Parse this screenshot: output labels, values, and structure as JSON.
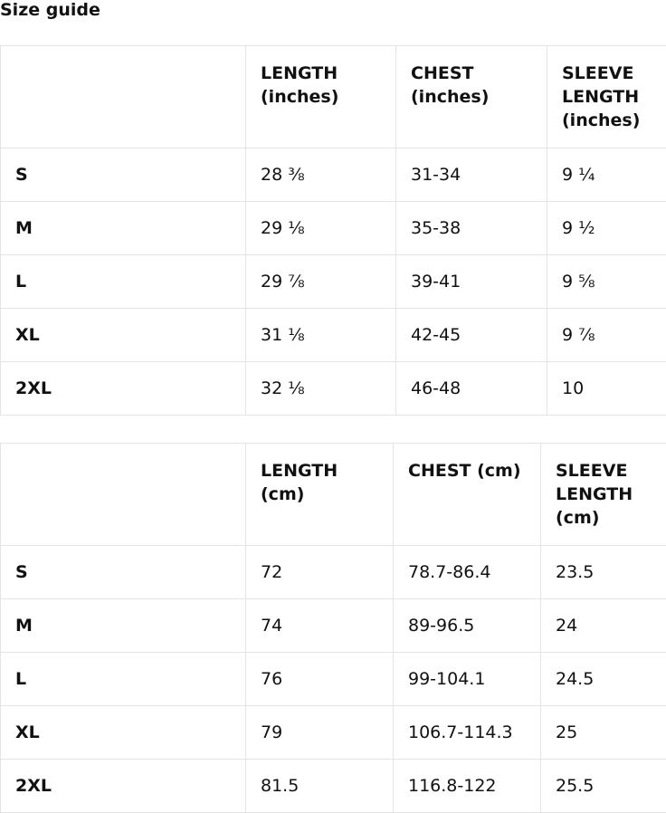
{
  "title": "Size guide",
  "tables": [
    {
      "headers": [
        "",
        "LENGTH (inches)",
        "CHEST (inches)",
        "SLEEVE LENGTH (inches)"
      ],
      "rows": [
        [
          "S",
          "28 ⅜",
          "31-34",
          "9 ¼"
        ],
        [
          "M",
          "29 ⅛",
          "35-38",
          "9 ½"
        ],
        [
          "L",
          "29 ⅞",
          "39-41",
          "9 ⅝"
        ],
        [
          "XL",
          "31 ⅛",
          "42-45",
          "9 ⅞"
        ],
        [
          "2XL",
          "32 ⅛",
          "46-48",
          "10"
        ]
      ]
    },
    {
      "headers": [
        "",
        "LENGTH (cm)",
        "CHEST (cm)",
        "SLEEVE LENGTH (cm)"
      ],
      "rows": [
        [
          "S",
          "72",
          "78.7-86.4",
          "23.5"
        ],
        [
          "M",
          "74",
          "89-96.5",
          "24"
        ],
        [
          "L",
          "76",
          "99-104.1",
          "24.5"
        ],
        [
          "XL",
          "79",
          "106.7-114.3",
          "25"
        ],
        [
          "2XL",
          "81.5",
          "116.8-122",
          "25.5"
        ]
      ]
    }
  ]
}
